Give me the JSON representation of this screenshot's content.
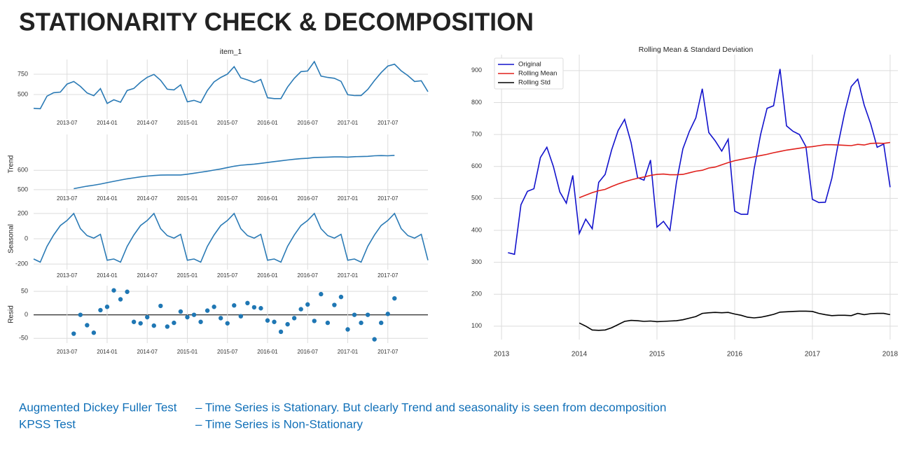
{
  "title": "STATIONARITY CHECK & DECOMPOSITION",
  "chart_data": [
    {
      "type": "line",
      "title": "item_1",
      "color": "#2a7ab5",
      "grid": true,
      "x": [
        "2013-01",
        "2013-02",
        "2013-03",
        "2013-04",
        "2013-05",
        "2013-06",
        "2013-07",
        "2013-08",
        "2013-09",
        "2013-10",
        "2013-11",
        "2013-12",
        "2014-01",
        "2014-02",
        "2014-03",
        "2014-04",
        "2014-05",
        "2014-06",
        "2014-07",
        "2014-08",
        "2014-09",
        "2014-10",
        "2014-11",
        "2014-12",
        "2015-01",
        "2015-02",
        "2015-03",
        "2015-04",
        "2015-05",
        "2015-06",
        "2015-07",
        "2015-08",
        "2015-09",
        "2015-10",
        "2015-11",
        "2015-12",
        "2016-01",
        "2016-02",
        "2016-03",
        "2016-04",
        "2016-05",
        "2016-06",
        "2016-07",
        "2016-08",
        "2016-09",
        "2016-10",
        "2016-11",
        "2016-12",
        "2017-01",
        "2017-02",
        "2017-03",
        "2017-04",
        "2017-05",
        "2017-06",
        "2017-07",
        "2017-08",
        "2017-09",
        "2017-10",
        "2017-11",
        "2017-12"
      ],
      "values": [
        330,
        325,
        480,
        522,
        530,
        628,
        660,
        600,
        520,
        485,
        572,
        390,
        435,
        405,
        550,
        575,
        652,
        712,
        747,
        675,
        565,
        557,
        620,
        410,
        428,
        400,
        550,
        655,
        710,
        752,
        843,
        706,
        680,
        648,
        685,
        460,
        450,
        450,
        592,
        700,
        782,
        790,
        905,
        727,
        710,
        700,
        662,
        497,
        487,
        488,
        563,
        672,
        770,
        850,
        873,
        792,
        733,
        660,
        670,
        535
      ],
      "ylim": [
        198,
        931
      ],
      "yticks": [
        500,
        750
      ],
      "xticks": [
        "2013-07",
        "2014-01",
        "2014-07",
        "2015-01",
        "2015-07",
        "2016-01",
        "2016-07",
        "2017-01",
        "2017-07"
      ]
    },
    {
      "type": "line",
      "ylabel": "Trend",
      "color": "#2a7ab5",
      "grid": true,
      "x": [
        "2013-01",
        "2013-02",
        "2013-03",
        "2013-04",
        "2013-05",
        "2013-06",
        "2013-07",
        "2013-08",
        "2013-09",
        "2013-10",
        "2013-11",
        "2013-12",
        "2014-01",
        "2014-02",
        "2014-03",
        "2014-04",
        "2014-05",
        "2014-06",
        "2014-07",
        "2014-08",
        "2014-09",
        "2014-10",
        "2014-11",
        "2014-12",
        "2015-01",
        "2015-02",
        "2015-03",
        "2015-04",
        "2015-05",
        "2015-06",
        "2015-07",
        "2015-08",
        "2015-09",
        "2015-10",
        "2015-11",
        "2015-12",
        "2016-01",
        "2016-02",
        "2016-03",
        "2016-04",
        "2016-05",
        "2016-06",
        "2016-07",
        "2016-08",
        "2016-09",
        "2016-10",
        "2016-11",
        "2016-12",
        "2017-01",
        "2017-02",
        "2017-03",
        "2017-04",
        "2017-05",
        "2017-06",
        "2017-07",
        "2017-08",
        "2017-09",
        "2017-10",
        "2017-11",
        "2017-12"
      ],
      "values": [
        null,
        null,
        null,
        null,
        null,
        null,
        505,
        512,
        518,
        523,
        529,
        536,
        543,
        550,
        556,
        561,
        566,
        570,
        573,
        575,
        576,
        576,
        576,
        580,
        585,
        590,
        595,
        601,
        607,
        614,
        621,
        626,
        629,
        632,
        636,
        640,
        645,
        649,
        653,
        657,
        660,
        662,
        666,
        667,
        668,
        669,
        669,
        668,
        670,
        671,
        672,
        675,
        676,
        675,
        677,
        null,
        null,
        null,
        null,
        null
      ],
      "ylim": [
        478,
        785
      ],
      "yticks": [
        500,
        600
      ],
      "xticks": [
        "2013-07",
        "2014-01",
        "2014-07",
        "2015-01",
        "2015-07",
        "2016-01",
        "2016-07",
        "2017-01",
        "2017-07"
      ]
    },
    {
      "type": "line",
      "ylabel": "Seasonal",
      "color": "#2a7ab5",
      "grid": true,
      "x": [
        "2013-01",
        "2013-02",
        "2013-03",
        "2013-04",
        "2013-05",
        "2013-06",
        "2013-07",
        "2013-08",
        "2013-09",
        "2013-10",
        "2013-11",
        "2013-12",
        "2014-01",
        "2014-02",
        "2014-03",
        "2014-04",
        "2014-05",
        "2014-06",
        "2014-07",
        "2014-08",
        "2014-09",
        "2014-10",
        "2014-11",
        "2014-12",
        "2015-01",
        "2015-02",
        "2015-03",
        "2015-04",
        "2015-05",
        "2015-06",
        "2015-07",
        "2015-08",
        "2015-09",
        "2015-10",
        "2015-11",
        "2015-12",
        "2016-01",
        "2016-02",
        "2016-03",
        "2016-04",
        "2016-05",
        "2016-06",
        "2016-07",
        "2016-08",
        "2016-09",
        "2016-10",
        "2016-11",
        "2016-12",
        "2017-01",
        "2017-02",
        "2017-03",
        "2017-04",
        "2017-05",
        "2017-06",
        "2017-07",
        "2017-08",
        "2017-09",
        "2017-10",
        "2017-11",
        "2017-12"
      ],
      "values": [
        -160,
        -185,
        -60,
        30,
        105,
        145,
        200,
        80,
        25,
        5,
        35,
        -170,
        -160,
        -185,
        -60,
        30,
        105,
        145,
        200,
        80,
        25,
        5,
        35,
        -170,
        -160,
        -185,
        -60,
        30,
        105,
        145,
        200,
        80,
        25,
        5,
        35,
        -170,
        -160,
        -185,
        -60,
        30,
        105,
        145,
        200,
        80,
        25,
        5,
        35,
        -170,
        -160,
        -185,
        -60,
        30,
        105,
        145,
        200,
        80,
        25,
        5,
        35,
        -170
      ],
      "ylim": [
        -244,
        244
      ],
      "yticks": [
        -200,
        0,
        200
      ],
      "xticks": [
        "2013-07",
        "2014-01",
        "2014-07",
        "2015-01",
        "2015-07",
        "2016-01",
        "2016-07",
        "2017-01",
        "2017-07"
      ]
    },
    {
      "type": "scatter",
      "ylabel": "Resid",
      "color": "#1f77b4",
      "grid": true,
      "x": [
        "2013-01",
        "2013-02",
        "2013-03",
        "2013-04",
        "2013-05",
        "2013-06",
        "2013-07",
        "2013-08",
        "2013-09",
        "2013-10",
        "2013-11",
        "2013-12",
        "2014-01",
        "2014-02",
        "2014-03",
        "2014-04",
        "2014-05",
        "2014-06",
        "2014-07",
        "2014-08",
        "2014-09",
        "2014-10",
        "2014-11",
        "2014-12",
        "2015-01",
        "2015-02",
        "2015-03",
        "2015-04",
        "2015-05",
        "2015-06",
        "2015-07",
        "2015-08",
        "2015-09",
        "2015-10",
        "2015-11",
        "2015-12",
        "2016-01",
        "2016-02",
        "2016-03",
        "2016-04",
        "2016-05",
        "2016-06",
        "2016-07",
        "2016-08",
        "2016-09",
        "2016-10",
        "2016-11",
        "2016-12",
        "2017-01",
        "2017-02",
        "2017-03",
        "2017-04",
        "2017-05",
        "2017-06",
        "2017-07",
        "2017-08",
        "2017-09",
        "2017-10",
        "2017-11",
        "2017-12"
      ],
      "values": [
        null,
        null,
        null,
        null,
        null,
        null,
        -40,
        0,
        -22,
        -38,
        10,
        17,
        52,
        33,
        49,
        -15,
        -18,
        -5,
        -23,
        19,
        -25,
        -17,
        7,
        -5,
        0,
        -15,
        9,
        17,
        -7,
        -18,
        20,
        -3,
        25,
        16,
        14,
        -12,
        -15,
        -36,
        -20,
        -7,
        12,
        22,
        -13,
        44,
        -17,
        21,
        38,
        -31,
        0,
        -17,
        0,
        -52,
        -17,
        2,
        35,
        null,
        null,
        null,
        null,
        null
      ],
      "ylim": [
        -60,
        62
      ],
      "yticks": [
        -50,
        0,
        50
      ],
      "xticks": [
        "2013-07",
        "2014-01",
        "2014-07",
        "2015-01",
        "2015-07",
        "2016-01",
        "2016-07",
        "2017-01",
        "2017-07"
      ]
    },
    {
      "type": "line",
      "title": "Rolling Mean & Standard Deviation",
      "grid": true,
      "legend": "upper left",
      "x": [
        "2013-01",
        "2013-02",
        "2013-03",
        "2013-04",
        "2013-05",
        "2013-06",
        "2013-07",
        "2013-08",
        "2013-09",
        "2013-10",
        "2013-11",
        "2013-12",
        "2014-01",
        "2014-02",
        "2014-03",
        "2014-04",
        "2014-05",
        "2014-06",
        "2014-07",
        "2014-08",
        "2014-09",
        "2014-10",
        "2014-11",
        "2014-12",
        "2015-01",
        "2015-02",
        "2015-03",
        "2015-04",
        "2015-05",
        "2015-06",
        "2015-07",
        "2015-08",
        "2015-09",
        "2015-10",
        "2015-11",
        "2015-12",
        "2016-01",
        "2016-02",
        "2016-03",
        "2016-04",
        "2016-05",
        "2016-06",
        "2016-07",
        "2016-08",
        "2016-09",
        "2016-10",
        "2016-11",
        "2016-12",
        "2017-01",
        "2017-02",
        "2017-03",
        "2017-04",
        "2017-05",
        "2017-06",
        "2017-07",
        "2017-08",
        "2017-09",
        "2017-10",
        "2017-11",
        "2017-12"
      ],
      "series": [
        {
          "name": "Original",
          "color": "#1212cc",
          "values": [
            330,
            325,
            480,
            522,
            530,
            628,
            660,
            600,
            520,
            485,
            572,
            390,
            435,
            405,
            550,
            575,
            652,
            712,
            747,
            675,
            565,
            557,
            620,
            410,
            428,
            400,
            550,
            655,
            710,
            752,
            843,
            706,
            680,
            648,
            685,
            460,
            450,
            450,
            592,
            700,
            782,
            790,
            905,
            727,
            710,
            700,
            662,
            497,
            487,
            488,
            563,
            672,
            770,
            850,
            873,
            792,
            733,
            660,
            670,
            535
          ]
        },
        {
          "name": "Rolling Mean",
          "color": "#e0201c",
          "values": [
            null,
            null,
            null,
            null,
            null,
            null,
            null,
            null,
            null,
            null,
            null,
            502,
            510,
            518,
            524,
            528,
            537,
            545,
            552,
            558,
            563,
            567,
            572,
            575,
            576,
            574,
            574,
            575,
            580,
            585,
            588,
            595,
            598,
            605,
            612,
            618,
            622,
            626,
            630,
            634,
            638,
            643,
            647,
            651,
            654,
            657,
            660,
            662,
            665,
            668,
            668,
            667,
            666,
            665,
            669,
            667,
            672,
            673,
            672,
            675
          ]
        },
        {
          "name": "Rolling Std",
          "color": "#000000",
          "values": [
            null,
            null,
            null,
            null,
            null,
            null,
            null,
            null,
            null,
            null,
            null,
            110,
            100,
            88,
            87,
            88,
            95,
            105,
            115,
            118,
            117,
            115,
            116,
            114,
            115,
            116,
            117,
            120,
            125,
            130,
            140,
            142,
            143,
            142,
            143,
            138,
            134,
            128,
            126,
            128,
            132,
            137,
            144,
            145,
            146,
            147,
            147,
            146,
            140,
            136,
            133,
            134,
            134,
            133,
            140,
            136,
            139,
            140,
            140,
            136
          ]
        }
      ],
      "xlim": [
        2012.9,
        2018.1
      ],
      "xticks": [
        2013,
        2014,
        2015,
        2016,
        2017,
        2018
      ],
      "ylim": [
        58,
        950
      ],
      "yticks": [
        100,
        200,
        300,
        400,
        500,
        600,
        700,
        800,
        900
      ]
    }
  ],
  "notes": [
    {
      "label": "Augmented Dickey Fuller Test",
      "text": "– Time Series is Stationary. But clearly Trend and seasonality is seen from decomposition"
    },
    {
      "label": "KPSS Test",
      "text": "– Time Series is Non-Stationary"
    }
  ]
}
